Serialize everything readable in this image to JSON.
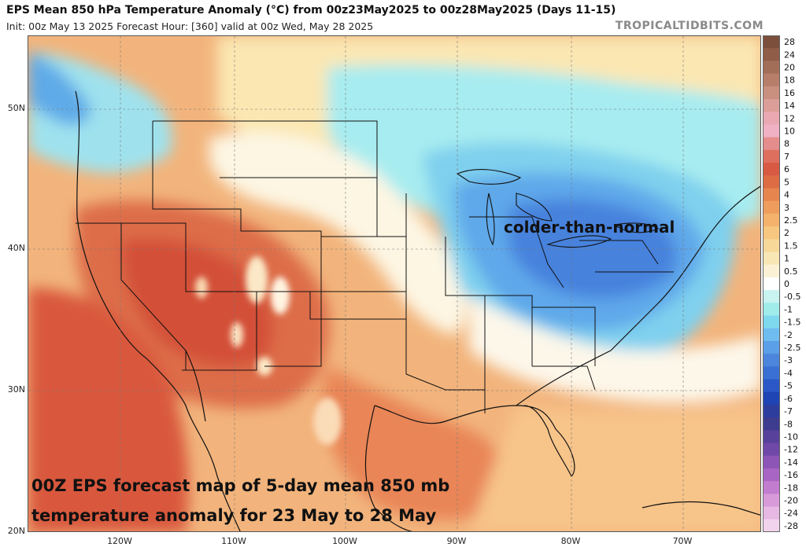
{
  "header": {
    "title": "EPS Mean 850 hPa Temperature Anomaly (°C) from 00z23May2025 to 00z28May2025 (Days 11-15)",
    "subtitle": "Init: 00z May 13 2025   Forecast Hour: [360]   valid at 00z Wed, May 28 2025",
    "brand": "TROPICALTIDBITS.COM"
  },
  "map": {
    "region": "continental United States",
    "lat_labels": [
      "50N",
      "40N",
      "30N",
      "20N"
    ],
    "lon_labels": [
      "120W",
      "110W",
      "100W",
      "90W",
      "80W",
      "70W"
    ],
    "annotation": "colder-than-normal",
    "caption_line1": "00Z EPS forecast map of 5-day mean 850 mb",
    "caption_line2": "temperature anomaly for 23 May to 28 May"
  },
  "legend": {
    "levels": [
      "28",
      "24",
      "20",
      "18",
      "16",
      "14",
      "12",
      "10",
      "8",
      "7",
      "6",
      "5",
      "4",
      "3",
      "2.5",
      "2",
      "1.5",
      "1",
      "0.5",
      "0",
      "-0.5",
      "-1",
      "-1.5",
      "-2",
      "-2.5",
      "-3",
      "-4",
      "-5",
      "-6",
      "-7",
      "-8",
      "-10",
      "-12",
      "-14",
      "-16",
      "-18",
      "-20",
      "-24",
      "-28"
    ],
    "colors": [
      "#7b4f3c",
      "#8f5d48",
      "#a36e58",
      "#b77e69",
      "#c99080",
      "#dc9e98",
      "#e9a8b2",
      "#f0b1c4",
      "#e58c8c",
      "#de6f5f",
      "#d85a43",
      "#dd6c45",
      "#e7854f",
      "#ef9d5c",
      "#f4b26c",
      "#f7c780",
      "#f8d898",
      "#f9e6b5",
      "#fbf2d6",
      "#ffffff",
      "#c8f3f1",
      "#9feceb",
      "#7ed8ee",
      "#6fbdf0",
      "#5a9fe7",
      "#4b86dc",
      "#3a6fd4",
      "#2b58c7",
      "#1f44b4",
      "#2d3d9e",
      "#3e3c8f",
      "#57419b",
      "#7048a8",
      "#8c55b6",
      "#a865c3",
      "#c27dce",
      "#d89ad9",
      "#e7b8e3",
      "#f2d3ed"
    ],
    "highlight_colors": {
      "warm": "#d7583c",
      "cool": "#5d8ee2",
      "neutral": "#ffffff"
    }
  }
}
